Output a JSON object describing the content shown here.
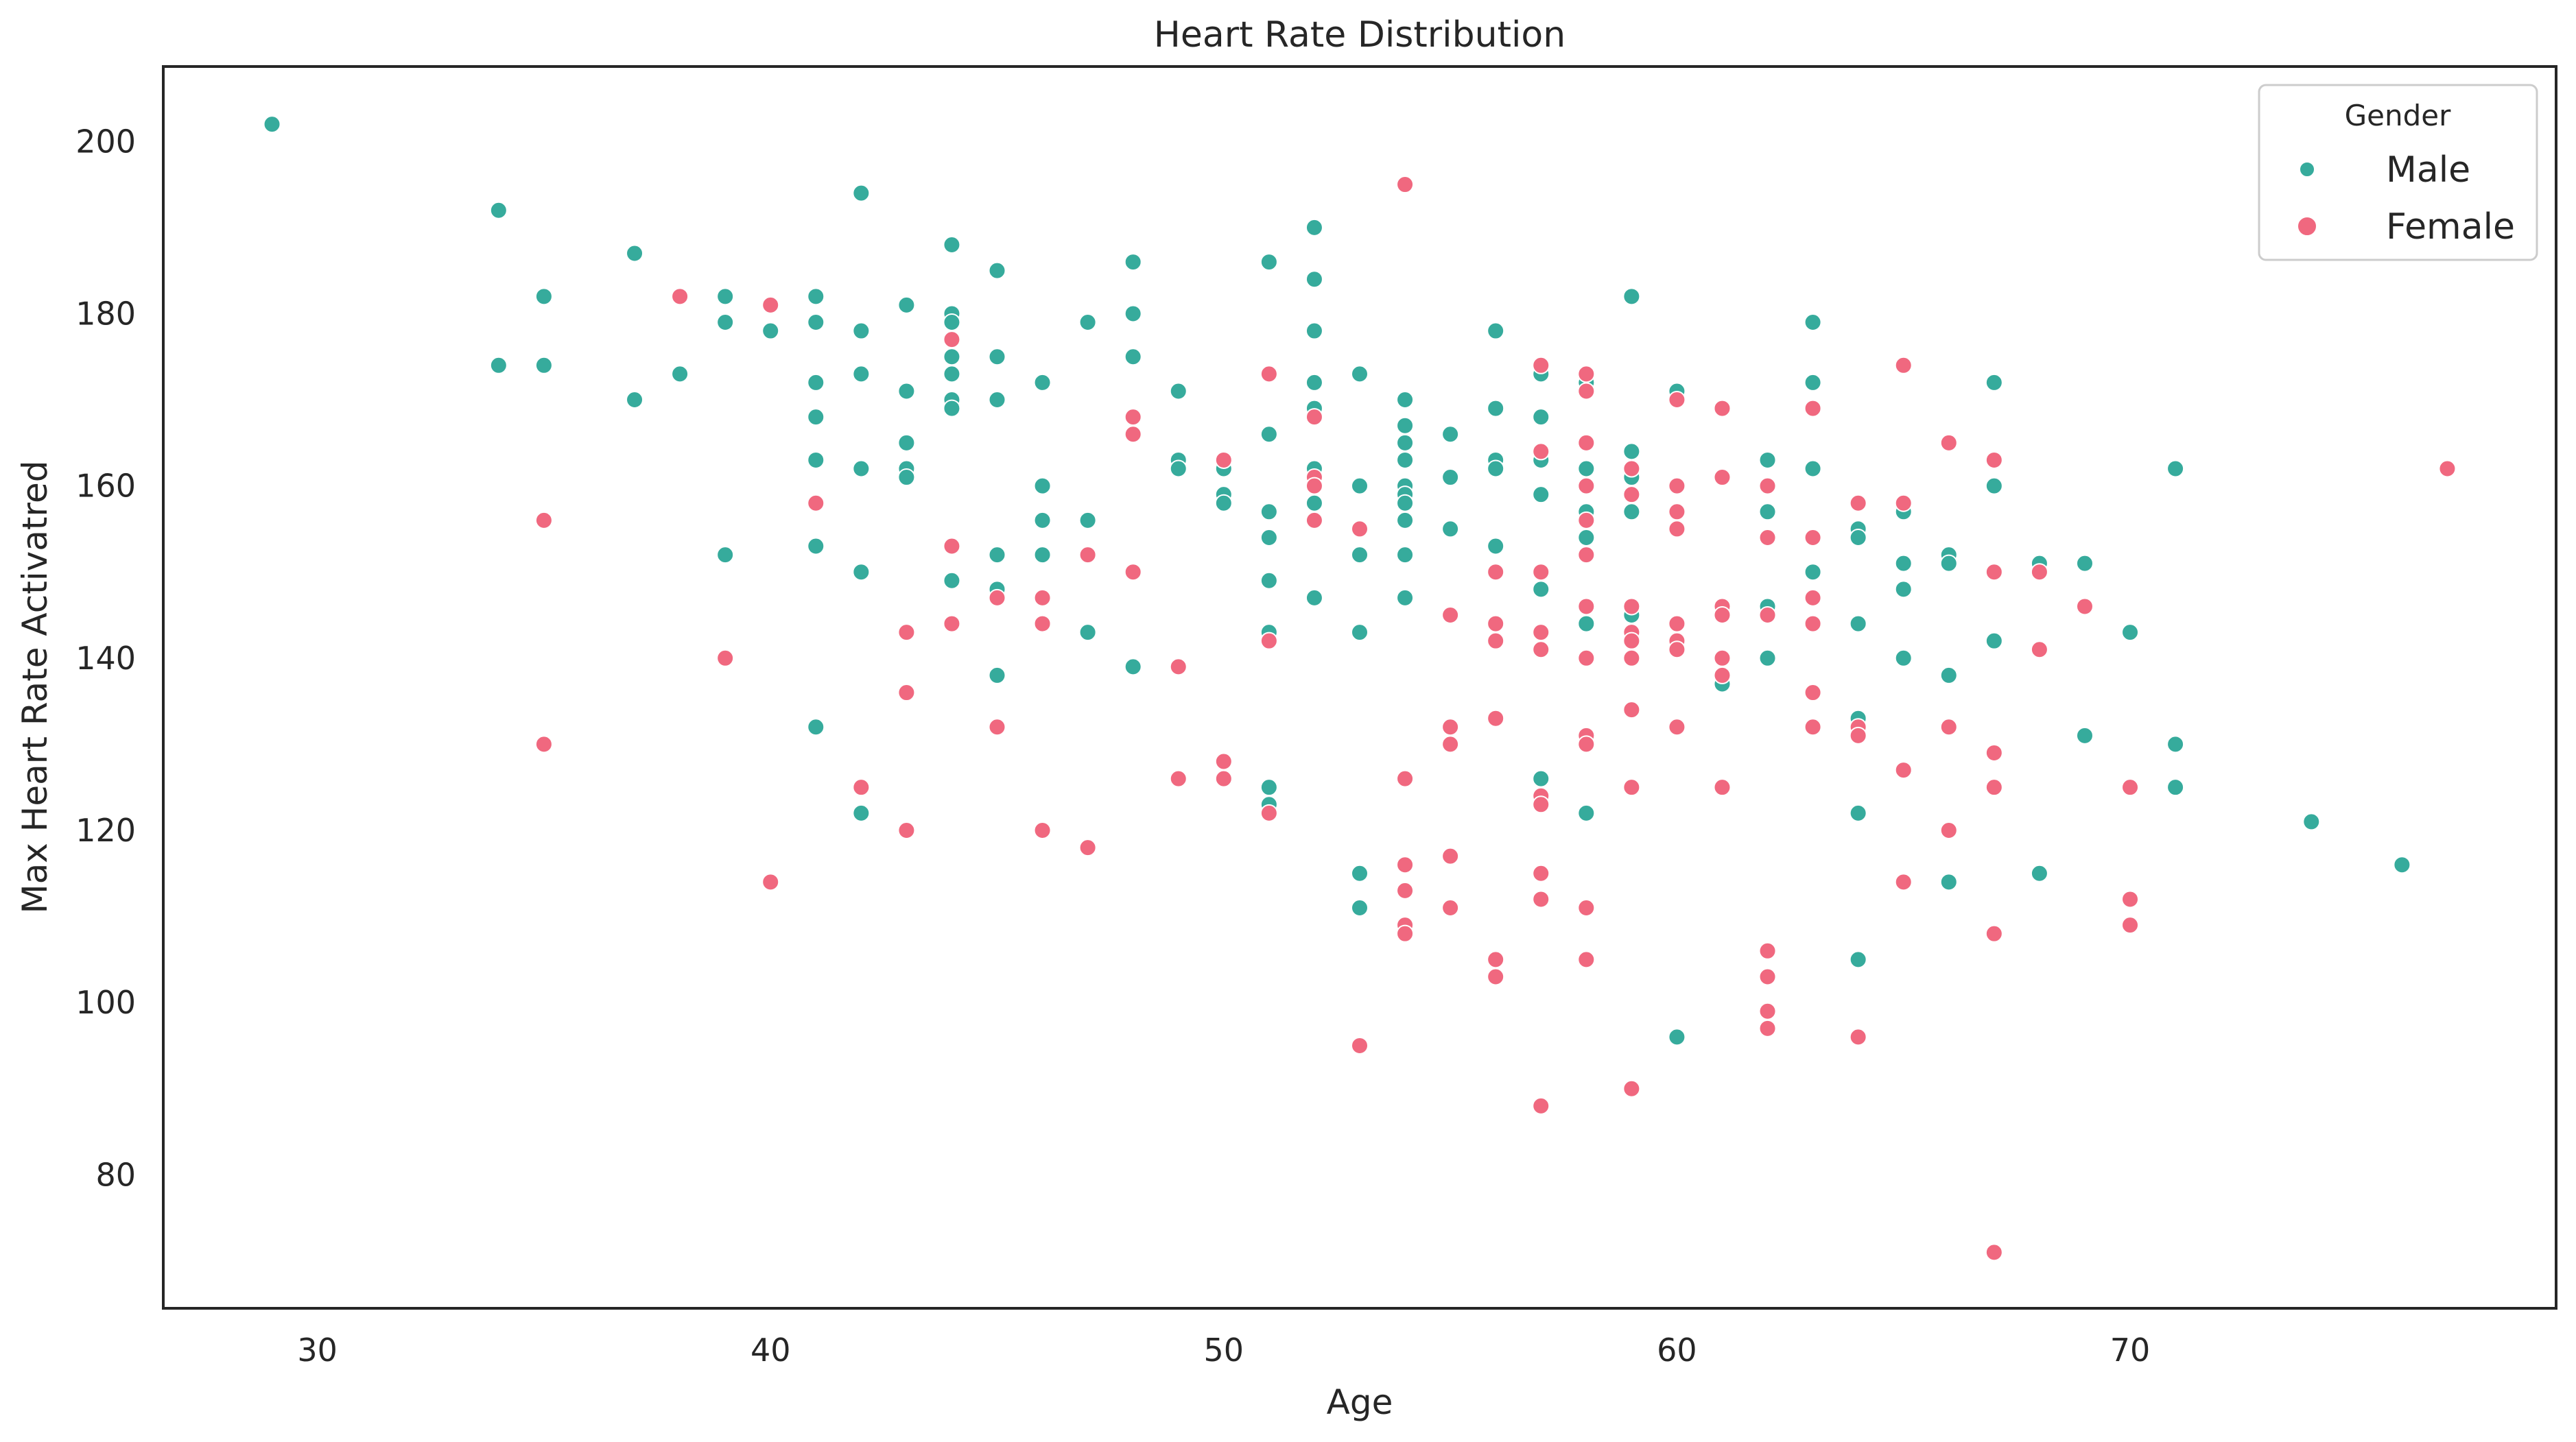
{
  "chart_data": {
    "type": "scatter",
    "title": "Heart Rate Distribution",
    "xlabel": "Age",
    "ylabel": "Max Heart Rate Activatred",
    "xlim": [
      26.6,
      79.4
    ],
    "ylim": [
      64.5,
      208.7
    ],
    "xticks": [
      30,
      40,
      50,
      60,
      70
    ],
    "yticks": [
      80,
      100,
      120,
      140,
      160,
      180,
      200
    ],
    "grid": false,
    "legend": {
      "title": "Gender",
      "position": "top-right"
    },
    "colors": {
      "Male": "#36ab9c",
      "Female": "#f0687f"
    },
    "series": [
      {
        "name": "Male",
        "points": [
          [
            29,
            202
          ],
          [
            34,
            192
          ],
          [
            34,
            174
          ],
          [
            35,
            182
          ],
          [
            35,
            174
          ],
          [
            37,
            187
          ],
          [
            37,
            170
          ],
          [
            38,
            173
          ],
          [
            39,
            182
          ],
          [
            39,
            179
          ],
          [
            39,
            152
          ],
          [
            40,
            178
          ],
          [
            41,
            182
          ],
          [
            41,
            179
          ],
          [
            41,
            172
          ],
          [
            41,
            168
          ],
          [
            41,
            163
          ],
          [
            41,
            153
          ],
          [
            41,
            132
          ],
          [
            42,
            194
          ],
          [
            42,
            178
          ],
          [
            42,
            173
          ],
          [
            42,
            162
          ],
          [
            42,
            150
          ],
          [
            42,
            122
          ],
          [
            43,
            181
          ],
          [
            43,
            171
          ],
          [
            43,
            165
          ],
          [
            43,
            162
          ],
          [
            43,
            161
          ],
          [
            44,
            188
          ],
          [
            44,
            180
          ],
          [
            44,
            179
          ],
          [
            44,
            175
          ],
          [
            44,
            173
          ],
          [
            44,
            170
          ],
          [
            44,
            169
          ],
          [
            44,
            149
          ],
          [
            45,
            185
          ],
          [
            45,
            175
          ],
          [
            45,
            170
          ],
          [
            45,
            152
          ],
          [
            45,
            148
          ],
          [
            45,
            138
          ],
          [
            46,
            172
          ],
          [
            46,
            160
          ],
          [
            46,
            156
          ],
          [
            46,
            152
          ],
          [
            47,
            179
          ],
          [
            47,
            156
          ],
          [
            47,
            143
          ],
          [
            48,
            186
          ],
          [
            48,
            180
          ],
          [
            48,
            175
          ],
          [
            48,
            139
          ],
          [
            49,
            171
          ],
          [
            49,
            163
          ],
          [
            49,
            162
          ],
          [
            50,
            162
          ],
          [
            50,
            159
          ],
          [
            50,
            158
          ],
          [
            51,
            186
          ],
          [
            51,
            166
          ],
          [
            51,
            157
          ],
          [
            51,
            154
          ],
          [
            51,
            149
          ],
          [
            51,
            143
          ],
          [
            51,
            125
          ],
          [
            51,
            123
          ],
          [
            52,
            190
          ],
          [
            52,
            184
          ],
          [
            52,
            178
          ],
          [
            52,
            172
          ],
          [
            52,
            169
          ],
          [
            52,
            162
          ],
          [
            52,
            158
          ],
          [
            52,
            147
          ],
          [
            53,
            173
          ],
          [
            53,
            160
          ],
          [
            53,
            152
          ],
          [
            53,
            143
          ],
          [
            53,
            115
          ],
          [
            53,
            111
          ],
          [
            54,
            170
          ],
          [
            54,
            167
          ],
          [
            54,
            165
          ],
          [
            54,
            163
          ],
          [
            54,
            160
          ],
          [
            54,
            159
          ],
          [
            54,
            158
          ],
          [
            54,
            156
          ],
          [
            54,
            152
          ],
          [
            54,
            147
          ],
          [
            55,
            166
          ],
          [
            55,
            161
          ],
          [
            55,
            155
          ],
          [
            56,
            178
          ],
          [
            56,
            169
          ],
          [
            56,
            163
          ],
          [
            56,
            162
          ],
          [
            56,
            153
          ],
          [
            57,
            173
          ],
          [
            57,
            168
          ],
          [
            57,
            163
          ],
          [
            57,
            159
          ],
          [
            57,
            148
          ],
          [
            57,
            126
          ],
          [
            58,
            172
          ],
          [
            58,
            162
          ],
          [
            58,
            157
          ],
          [
            58,
            154
          ],
          [
            58,
            144
          ],
          [
            58,
            122
          ],
          [
            59,
            182
          ],
          [
            59,
            164
          ],
          [
            59,
            161
          ],
          [
            59,
            157
          ],
          [
            59,
            145
          ],
          [
            60,
            171
          ],
          [
            60,
            96
          ],
          [
            61,
            137
          ],
          [
            62,
            163
          ],
          [
            62,
            157
          ],
          [
            62,
            146
          ],
          [
            62,
            140
          ],
          [
            63,
            179
          ],
          [
            63,
            172
          ],
          [
            63,
            162
          ],
          [
            63,
            150
          ],
          [
            64,
            155
          ],
          [
            64,
            154
          ],
          [
            64,
            144
          ],
          [
            64,
            133
          ],
          [
            64,
            122
          ],
          [
            64,
            105
          ],
          [
            65,
            157
          ],
          [
            65,
            151
          ],
          [
            65,
            148
          ],
          [
            65,
            140
          ],
          [
            66,
            152
          ],
          [
            66,
            151
          ],
          [
            66,
            138
          ],
          [
            66,
            114
          ],
          [
            67,
            172
          ],
          [
            67,
            160
          ],
          [
            67,
            142
          ],
          [
            68,
            151
          ],
          [
            68,
            115
          ],
          [
            69,
            151
          ],
          [
            69,
            131
          ],
          [
            70,
            143
          ],
          [
            71,
            162
          ],
          [
            71,
            130
          ],
          [
            71,
            125
          ],
          [
            74,
            121
          ],
          [
            76,
            116
          ]
        ]
      },
      {
        "name": "Female",
        "points": [
          [
            35,
            156
          ],
          [
            35,
            130
          ],
          [
            38,
            182
          ],
          [
            39,
            140
          ],
          [
            40,
            181
          ],
          [
            40,
            114
          ],
          [
            41,
            158
          ],
          [
            42,
            125
          ],
          [
            43,
            143
          ],
          [
            43,
            136
          ],
          [
            43,
            120
          ],
          [
            44,
            177
          ],
          [
            44,
            153
          ],
          [
            44,
            144
          ],
          [
            45,
            147
          ],
          [
            45,
            132
          ],
          [
            46,
            147
          ],
          [
            46,
            144
          ],
          [
            46,
            120
          ],
          [
            47,
            152
          ],
          [
            47,
            118
          ],
          [
            48,
            168
          ],
          [
            48,
            166
          ],
          [
            48,
            150
          ],
          [
            49,
            139
          ],
          [
            49,
            126
          ],
          [
            50,
            163
          ],
          [
            50,
            128
          ],
          [
            50,
            126
          ],
          [
            51,
            173
          ],
          [
            51,
            142
          ],
          [
            51,
            122
          ],
          [
            52,
            168
          ],
          [
            52,
            161
          ],
          [
            52,
            160
          ],
          [
            52,
            156
          ],
          [
            53,
            155
          ],
          [
            53,
            95
          ],
          [
            54,
            195
          ],
          [
            54,
            126
          ],
          [
            54,
            116
          ],
          [
            54,
            113
          ],
          [
            54,
            109
          ],
          [
            54,
            108
          ],
          [
            55,
            145
          ],
          [
            55,
            132
          ],
          [
            55,
            130
          ],
          [
            55,
            117
          ],
          [
            55,
            111
          ],
          [
            56,
            150
          ],
          [
            56,
            144
          ],
          [
            56,
            142
          ],
          [
            56,
            133
          ],
          [
            56,
            105
          ],
          [
            56,
            103
          ],
          [
            57,
            174
          ],
          [
            57,
            164
          ],
          [
            57,
            150
          ],
          [
            57,
            143
          ],
          [
            57,
            141
          ],
          [
            57,
            124
          ],
          [
            57,
            123
          ],
          [
            57,
            115
          ],
          [
            57,
            112
          ],
          [
            57,
            88
          ],
          [
            58,
            173
          ],
          [
            58,
            171
          ],
          [
            58,
            165
          ],
          [
            58,
            160
          ],
          [
            58,
            156
          ],
          [
            58,
            152
          ],
          [
            58,
            146
          ],
          [
            58,
            140
          ],
          [
            58,
            131
          ],
          [
            58,
            130
          ],
          [
            58,
            111
          ],
          [
            58,
            105
          ],
          [
            59,
            162
          ],
          [
            59,
            159
          ],
          [
            59,
            146
          ],
          [
            59,
            143
          ],
          [
            59,
            142
          ],
          [
            59,
            140
          ],
          [
            59,
            134
          ],
          [
            59,
            125
          ],
          [
            59,
            90
          ],
          [
            60,
            170
          ],
          [
            60,
            160
          ],
          [
            60,
            157
          ],
          [
            60,
            155
          ],
          [
            60,
            144
          ],
          [
            60,
            142
          ],
          [
            60,
            141
          ],
          [
            60,
            132
          ],
          [
            61,
            169
          ],
          [
            61,
            161
          ],
          [
            61,
            146
          ],
          [
            61,
            145
          ],
          [
            61,
            140
          ],
          [
            61,
            138
          ],
          [
            61,
            125
          ],
          [
            62,
            160
          ],
          [
            62,
            154
          ],
          [
            62,
            145
          ],
          [
            62,
            106
          ],
          [
            62,
            103
          ],
          [
            62,
            99
          ],
          [
            62,
            97
          ],
          [
            63,
            169
          ],
          [
            63,
            154
          ],
          [
            63,
            147
          ],
          [
            63,
            144
          ],
          [
            63,
            136
          ],
          [
            63,
            132
          ],
          [
            64,
            158
          ],
          [
            64,
            132
          ],
          [
            64,
            131
          ],
          [
            64,
            96
          ],
          [
            65,
            174
          ],
          [
            65,
            158
          ],
          [
            65,
            127
          ],
          [
            65,
            114
          ],
          [
            66,
            165
          ],
          [
            66,
            132
          ],
          [
            66,
            120
          ],
          [
            67,
            163
          ],
          [
            67,
            150
          ],
          [
            67,
            129
          ],
          [
            67,
            125
          ],
          [
            67,
            108
          ],
          [
            67,
            71
          ],
          [
            68,
            150
          ],
          [
            68,
            141
          ],
          [
            69,
            146
          ],
          [
            70,
            125
          ],
          [
            70,
            112
          ],
          [
            70,
            109
          ],
          [
            77,
            162
          ]
        ]
      }
    ]
  }
}
